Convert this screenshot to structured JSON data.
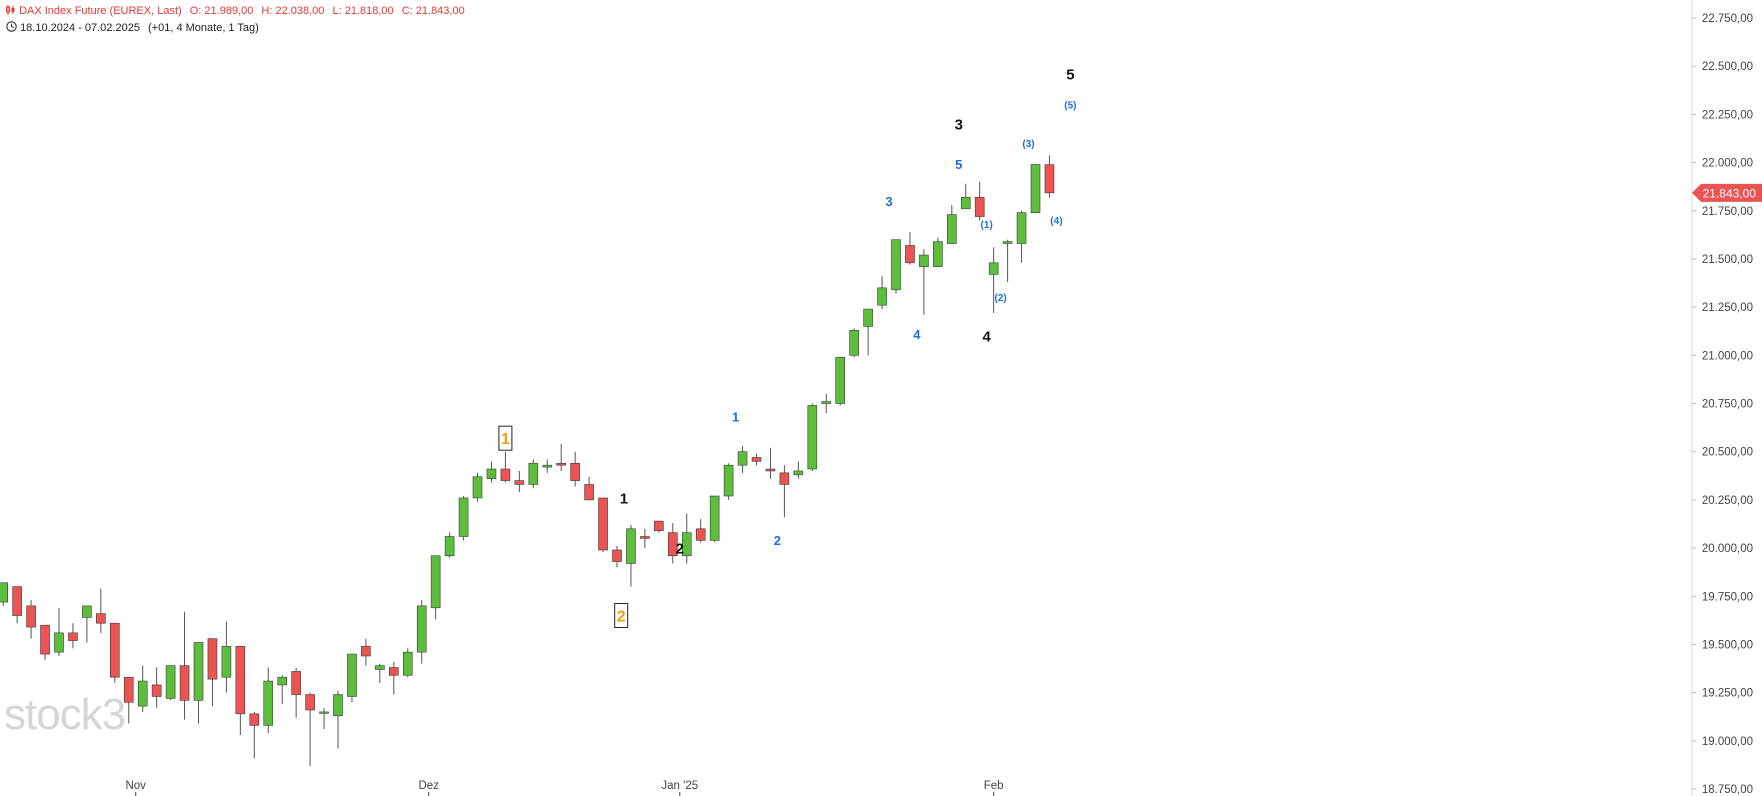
{
  "header": {
    "title": "DAX Index Future (EUREX, Last)",
    "open": "O: 21.989,00",
    "high": "H: 22.038,00",
    "low": "L: 21.818,00",
    "close": "C: 21.843,00",
    "date_range": "18.10.2024 - 07.02.2025",
    "period": "(+01, 4 Monate, 1 Tag)"
  },
  "watermark": "stock3",
  "last_price_label": "21.843,00",
  "colors": {
    "up": "#5cbf3c",
    "down": "#ec5353",
    "wick": "#555555",
    "black_wave": "#111111",
    "blue_wave": "#1e6fd9",
    "orange_wave": "#f39c12",
    "price_tag": "#ec5353"
  },
  "chart_data": {
    "type": "candlestick",
    "y_axis": {
      "range": [
        18750,
        22750
      ],
      "ticks": [
        {
          "value": 22750,
          "label": "22.750,00"
        },
        {
          "value": 22500,
          "label": "22.500,00"
        },
        {
          "value": 22250,
          "label": "22.250,00"
        },
        {
          "value": 22000,
          "label": "22.000,00"
        },
        {
          "value": 21750,
          "label": "21.750,00"
        },
        {
          "value": 21500,
          "label": "21.500,00"
        },
        {
          "value": 21250,
          "label": "21.250,00"
        },
        {
          "value": 21000,
          "label": "21.000,00"
        },
        {
          "value": 20750,
          "label": "20.750,00"
        },
        {
          "value": 20500,
          "label": "20.500,00"
        },
        {
          "value": 20250,
          "label": "20.250,00"
        },
        {
          "value": 20000,
          "label": "20.000,00"
        },
        {
          "value": 19750,
          "label": "19.750,00"
        },
        {
          "value": 19500,
          "label": "19.500,00"
        },
        {
          "value": 19250,
          "label": "19.250,00"
        },
        {
          "value": 19000,
          "label": "19.000,00"
        },
        {
          "value": 18750,
          "label": "18.750,00"
        }
      ]
    },
    "x_axis": {
      "ticks": [
        {
          "index": 9.5,
          "label": "Nov"
        },
        {
          "index": 30.5,
          "label": "Dez"
        },
        {
          "index": 48.5,
          "label": "Jan '25"
        },
        {
          "index": 71,
          "label": "Feb"
        }
      ]
    },
    "candles": [
      {
        "o": 19720,
        "h": 19820,
        "l": 19700,
        "c": 19820
      },
      {
        "o": 19800,
        "h": 19800,
        "l": 19610,
        "c": 19650
      },
      {
        "o": 19700,
        "h": 19730,
        "l": 19530,
        "c": 19590
      },
      {
        "o": 19600,
        "h": 19600,
        "l": 19420,
        "c": 19450
      },
      {
        "o": 19460,
        "h": 19690,
        "l": 19440,
        "c": 19560
      },
      {
        "o": 19560,
        "h": 19610,
        "l": 19480,
        "c": 19520
      },
      {
        "o": 19640,
        "h": 19700,
        "l": 19510,
        "c": 19700
      },
      {
        "o": 19660,
        "h": 19790,
        "l": 19560,
        "c": 19610
      },
      {
        "o": 19610,
        "h": 19610,
        "l": 19300,
        "c": 19330
      },
      {
        "o": 19330,
        "h": 19330,
        "l": 19090,
        "c": 19200
      },
      {
        "o": 19180,
        "h": 19390,
        "l": 19150,
        "c": 19310
      },
      {
        "o": 19290,
        "h": 19380,
        "l": 19170,
        "c": 19230
      },
      {
        "o": 19220,
        "h": 19390,
        "l": 19210,
        "c": 19390
      },
      {
        "o": 19390,
        "h": 19670,
        "l": 19110,
        "c": 19210
      },
      {
        "o": 19210,
        "h": 19510,
        "l": 19090,
        "c": 19510
      },
      {
        "o": 19530,
        "h": 19530,
        "l": 19180,
        "c": 19320
      },
      {
        "o": 19330,
        "h": 19620,
        "l": 19250,
        "c": 19490
      },
      {
        "o": 19490,
        "h": 19490,
        "l": 19030,
        "c": 19140
      },
      {
        "o": 19140,
        "h": 19150,
        "l": 18910,
        "c": 19080
      },
      {
        "o": 19080,
        "h": 19380,
        "l": 19040,
        "c": 19310
      },
      {
        "o": 19290,
        "h": 19340,
        "l": 19190,
        "c": 19330
      },
      {
        "o": 19360,
        "h": 19380,
        "l": 19120,
        "c": 19240
      },
      {
        "o": 19240,
        "h": 19250,
        "l": 18870,
        "c": 19160
      },
      {
        "o": 19150,
        "h": 19170,
        "l": 19060,
        "c": 19150
      },
      {
        "o": 19130,
        "h": 19260,
        "l": 18960,
        "c": 19240
      },
      {
        "o": 19230,
        "h": 19450,
        "l": 19200,
        "c": 19450
      },
      {
        "o": 19490,
        "h": 19530,
        "l": 19390,
        "c": 19440
      },
      {
        "o": 19370,
        "h": 19400,
        "l": 19300,
        "c": 19390
      },
      {
        "o": 19380,
        "h": 19410,
        "l": 19240,
        "c": 19340
      },
      {
        "o": 19340,
        "h": 19480,
        "l": 19330,
        "c": 19460
      },
      {
        "o": 19460,
        "h": 19730,
        "l": 19400,
        "c": 19700
      },
      {
        "o": 19690,
        "h": 19960,
        "l": 19630,
        "c": 19960
      },
      {
        "o": 19960,
        "h": 20080,
        "l": 19950,
        "c": 20060
      },
      {
        "o": 20060,
        "h": 20270,
        "l": 20040,
        "c": 20260
      },
      {
        "o": 20260,
        "h": 20390,
        "l": 20240,
        "c": 20370
      },
      {
        "o": 20360,
        "h": 20450,
        "l": 20340,
        "c": 20410
      },
      {
        "o": 20410,
        "h": 20500,
        "l": 20340,
        "c": 20350
      },
      {
        "o": 20350,
        "h": 20400,
        "l": 20290,
        "c": 20330
      },
      {
        "o": 20330,
        "h": 20460,
        "l": 20310,
        "c": 20440
      },
      {
        "o": 20420,
        "h": 20460,
        "l": 20390,
        "c": 20430
      },
      {
        "o": 20440,
        "h": 20540,
        "l": 20400,
        "c": 20430
      },
      {
        "o": 20440,
        "h": 20500,
        "l": 20320,
        "c": 20350
      },
      {
        "o": 20330,
        "h": 20370,
        "l": 20250,
        "c": 20250
      },
      {
        "o": 20260,
        "h": 20260,
        "l": 19980,
        "c": 19990
      },
      {
        "o": 19990,
        "h": 20010,
        "l": 19900,
        "c": 19930
      },
      {
        "o": 19920,
        "h": 20120,
        "l": 19800,
        "c": 20100
      },
      {
        "o": 20060,
        "h": 20100,
        "l": 20000,
        "c": 20050
      },
      {
        "o": 20140,
        "h": 20140,
        "l": 20080,
        "c": 20090
      },
      {
        "o": 20080,
        "h": 20130,
        "l": 19920,
        "c": 19960
      },
      {
        "o": 19960,
        "h": 20180,
        "l": 19920,
        "c": 20080
      },
      {
        "o": 20100,
        "h": 20150,
        "l": 20030,
        "c": 20040
      },
      {
        "o": 20040,
        "h": 20250,
        "l": 20030,
        "c": 20270
      },
      {
        "o": 20270,
        "h": 20440,
        "l": 20250,
        "c": 20430
      },
      {
        "o": 20430,
        "h": 20530,
        "l": 20390,
        "c": 20500
      },
      {
        "o": 20470,
        "h": 20490,
        "l": 20430,
        "c": 20450
      },
      {
        "o": 20410,
        "h": 20520,
        "l": 20360,
        "c": 20400
      },
      {
        "o": 20390,
        "h": 20430,
        "l": 20160,
        "c": 20330
      },
      {
        "o": 20380,
        "h": 20450,
        "l": 20360,
        "c": 20400
      },
      {
        "o": 20410,
        "h": 20750,
        "l": 20400,
        "c": 20740
      },
      {
        "o": 20750,
        "h": 20800,
        "l": 20700,
        "c": 20760
      },
      {
        "o": 20750,
        "h": 20990,
        "l": 20740,
        "c": 20990
      },
      {
        "o": 21000,
        "h": 21140,
        "l": 20990,
        "c": 21130
      },
      {
        "o": 21150,
        "h": 21240,
        "l": 21000,
        "c": 21240
      },
      {
        "o": 21260,
        "h": 21410,
        "l": 21240,
        "c": 21350
      },
      {
        "o": 21340,
        "h": 21600,
        "l": 21320,
        "c": 21600
      },
      {
        "o": 21570,
        "h": 21640,
        "l": 21470,
        "c": 21480
      },
      {
        "o": 21460,
        "h": 21550,
        "l": 21210,
        "c": 21520
      },
      {
        "o": 21460,
        "h": 21610,
        "l": 21460,
        "c": 21590
      },
      {
        "o": 21580,
        "h": 21780,
        "l": 21580,
        "c": 21730
      },
      {
        "o": 21760,
        "h": 21890,
        "l": 21760,
        "c": 21820
      },
      {
        "o": 21820,
        "h": 21900,
        "l": 21700,
        "c": 21720
      },
      {
        "o": 21420,
        "h": 21560,
        "l": 21220,
        "c": 21480
      },
      {
        "o": 21580,
        "h": 21600,
        "l": 21380,
        "c": 21590
      },
      {
        "o": 21580,
        "h": 21750,
        "l": 21480,
        "c": 21740
      },
      {
        "o": 21740,
        "h": 21990,
        "l": 21740,
        "c": 21990
      },
      {
        "o": 21989,
        "h": 22038,
        "l": 21818,
        "c": 21843
      }
    ],
    "wave_labels": [
      {
        "text": "1",
        "style": "orange",
        "boxed": true,
        "index": 36,
        "y": 20570
      },
      {
        "text": "2",
        "style": "orange",
        "boxed": true,
        "index": 44.3,
        "y": 19650
      },
      {
        "text": "1",
        "style": "black",
        "index": 44.5,
        "y": 20260
      },
      {
        "text": "2",
        "style": "black",
        "index": 48.5,
        "y": 20000
      },
      {
        "text": "3",
        "style": "black",
        "index": 68.5,
        "y": 22200
      },
      {
        "text": "4",
        "style": "black",
        "index": 70.5,
        "y": 21100
      },
      {
        "text": "5",
        "style": "black",
        "index": 76.5,
        "y": 22460
      },
      {
        "text": "1",
        "style": "blue",
        "index": 52.5,
        "y": 20680
      },
      {
        "text": "2",
        "style": "blue",
        "index": 55.5,
        "y": 20040
      },
      {
        "text": "3",
        "style": "blue",
        "index": 63.5,
        "y": 21800
      },
      {
        "text": "4",
        "style": "blue",
        "index": 65.5,
        "y": 21110
      },
      {
        "text": "5",
        "style": "blue",
        "index": 68.5,
        "y": 21990
      },
      {
        "text": "(1)",
        "style": "blue-small",
        "index": 70.5,
        "y": 21680
      },
      {
        "text": "(2)",
        "style": "blue-small",
        "index": 71.5,
        "y": 21300
      },
      {
        "text": "(3)",
        "style": "blue-small",
        "index": 73.5,
        "y": 22100
      },
      {
        "text": "(4)",
        "style": "blue-small",
        "index": 75.5,
        "y": 21700
      },
      {
        "text": "(5)",
        "style": "blue-small",
        "index": 76.5,
        "y": 22300
      }
    ]
  }
}
